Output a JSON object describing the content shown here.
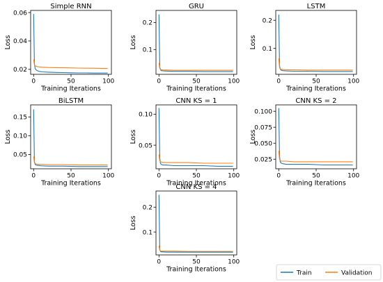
{
  "legend": {
    "train_label": "Train",
    "validation_label": "Validation",
    "train_color": "#1f77b4",
    "validation_color": "#ff7f0e",
    "placement": "bottom-right"
  },
  "chart_data": [
    {
      "type": "line",
      "title": "Simple RNN",
      "xlabel": "Training Iterations",
      "ylabel": "Loss",
      "xlim": [
        -4,
        104
      ],
      "ylim": [
        0.0165,
        0.0615
      ],
      "xticks": [
        0,
        50,
        100
      ],
      "xtick_labels": [
        "0",
        "50",
        "100"
      ],
      "yticks": [
        0.02,
        0.04,
        0.06
      ],
      "ytick_labels": [
        "0.02",
        "0.04",
        "0.06"
      ],
      "grid": false,
      "x": [
        0,
        1,
        2,
        3,
        5,
        8,
        12,
        20,
        30,
        40,
        50,
        60,
        70,
        80,
        90,
        99
      ],
      "series": [
        {
          "name": "Train",
          "values": [
            0.059,
            0.024,
            0.0208,
            0.0198,
            0.019,
            0.0185,
            0.0182,
            0.018,
            0.0178,
            0.0177,
            0.0176,
            0.0175,
            0.0175,
            0.0174,
            0.0174,
            0.0174
          ]
        },
        {
          "name": "Validation",
          "values": [
            0.027,
            0.0232,
            0.0225,
            0.0222,
            0.0219,
            0.0217,
            0.0215,
            0.0213,
            0.0212,
            0.0211,
            0.021,
            0.0209,
            0.0208,
            0.0208,
            0.0207,
            0.0206
          ]
        }
      ]
    },
    {
      "type": "line",
      "title": "GRU",
      "xlabel": "Training Iterations",
      "ylabel": "Loss",
      "xlim": [
        -4,
        104
      ],
      "ylim": [
        0.008,
        0.245
      ],
      "xticks": [
        0,
        50,
        100
      ],
      "xtick_labels": [
        "0",
        "50",
        "100"
      ],
      "yticks": [
        0.1,
        0.2
      ],
      "ytick_labels": [
        "0.1",
        "0.2"
      ],
      "grid": false,
      "x": [
        0,
        1,
        2,
        3,
        5,
        10,
        20,
        40,
        60,
        80,
        99
      ],
      "series": [
        {
          "name": "Train",
          "values": [
            0.23,
            0.035,
            0.025,
            0.022,
            0.021,
            0.02,
            0.019,
            0.019,
            0.018,
            0.018,
            0.018
          ]
        },
        {
          "name": "Validation",
          "values": [
            0.05,
            0.03,
            0.026,
            0.025,
            0.024,
            0.024,
            0.023,
            0.023,
            0.023,
            0.023,
            0.023
          ]
        }
      ]
    },
    {
      "type": "line",
      "title": "LSTM",
      "xlabel": "Training Iterations",
      "ylabel": "Loss",
      "xlim": [
        -4,
        104
      ],
      "ylim": [
        0.008,
        0.235
      ],
      "xticks": [
        0,
        50,
        100
      ],
      "xtick_labels": [
        "0",
        "50",
        "100"
      ],
      "yticks": [
        0.1,
        0.2
      ],
      "ytick_labels": [
        "0.1",
        "0.2"
      ],
      "grid": false,
      "x": [
        0,
        1,
        2,
        3,
        5,
        10,
        20,
        40,
        60,
        80,
        99
      ],
      "series": [
        {
          "name": "Train",
          "values": [
            0.22,
            0.04,
            0.027,
            0.023,
            0.021,
            0.02,
            0.019,
            0.019,
            0.018,
            0.018,
            0.018
          ]
        },
        {
          "name": "Validation",
          "values": [
            0.065,
            0.032,
            0.027,
            0.026,
            0.025,
            0.024,
            0.024,
            0.023,
            0.023,
            0.023,
            0.023
          ]
        }
      ]
    },
    {
      "type": "line",
      "title": "BiLSTM",
      "xlabel": "Training Iterations",
      "ylabel": "Loss",
      "xlim": [
        -4,
        104
      ],
      "ylim": [
        0.012,
        0.182
      ],
      "xticks": [
        0,
        50,
        100
      ],
      "xtick_labels": [
        "0",
        "50",
        "100"
      ],
      "yticks": [
        0.05,
        0.1,
        0.15
      ],
      "ytick_labels": [
        "0.05",
        "0.10",
        "0.15"
      ],
      "grid": false,
      "x": [
        0,
        1,
        2,
        3,
        5,
        10,
        20,
        40,
        60,
        80,
        99
      ],
      "series": [
        {
          "name": "Train",
          "values": [
            0.17,
            0.032,
            0.024,
            0.022,
            0.021,
            0.02,
            0.019,
            0.019,
            0.018,
            0.018,
            0.018
          ]
        },
        {
          "name": "Validation",
          "values": [
            0.045,
            0.028,
            0.026,
            0.025,
            0.024,
            0.024,
            0.023,
            0.023,
            0.022,
            0.022,
            0.022
          ]
        }
      ]
    },
    {
      "type": "line",
      "title": "CNN KS = 1",
      "xlabel": "Training Iterations",
      "ylabel": "Loss",
      "xlim": [
        -4,
        104
      ],
      "ylim": [
        0.012,
        0.115
      ],
      "xticks": [
        0,
        50,
        100
      ],
      "xtick_labels": [
        "0",
        "50",
        "100"
      ],
      "yticks": [
        0.05,
        0.1
      ],
      "ytick_labels": [
        "0.05",
        "0.10"
      ],
      "grid": false,
      "x": [
        0,
        1,
        2,
        3,
        5,
        10,
        20,
        40,
        60,
        80,
        99
      ],
      "series": [
        {
          "name": "Train",
          "values": [
            0.11,
            0.03,
            0.021,
            0.019,
            0.018,
            0.018,
            0.017,
            0.017,
            0.017,
            0.016,
            0.016
          ]
        },
        {
          "name": "Validation",
          "values": [
            0.035,
            0.025,
            0.023,
            0.023,
            0.022,
            0.022,
            0.022,
            0.022,
            0.021,
            0.021,
            0.021
          ]
        }
      ]
    },
    {
      "type": "line",
      "title": "CNN KS = 2",
      "xlabel": "Training Iterations",
      "ylabel": "Loss",
      "xlim": [
        -4,
        104
      ],
      "ylim": [
        0.01,
        0.11
      ],
      "xticks": [
        0,
        50,
        100
      ],
      "xtick_labels": [
        "0",
        "50",
        "100"
      ],
      "yticks": [
        0.025,
        0.05,
        0.075,
        0.1
      ],
      "ytick_labels": [
        "0.025",
        "0.050",
        "0.075",
        "0.100"
      ],
      "grid": false,
      "x": [
        0,
        1,
        2,
        3,
        5,
        10,
        20,
        40,
        60,
        80,
        99
      ],
      "series": [
        {
          "name": "Train",
          "values": [
            0.105,
            0.03,
            0.021,
            0.019,
            0.018,
            0.017,
            0.017,
            0.017,
            0.016,
            0.016,
            0.016
          ]
        },
        {
          "name": "Validation",
          "values": [
            0.038,
            0.025,
            0.023,
            0.022,
            0.022,
            0.022,
            0.021,
            0.021,
            0.021,
            0.021,
            0.021
          ]
        }
      ]
    },
    {
      "type": "line",
      "title": "CNN KS = 4",
      "xlabel": "Training Iterations",
      "ylabel": "Loss",
      "xlim": [
        -4,
        104
      ],
      "ylim": [
        0.008,
        0.265
      ],
      "xticks": [
        0,
        50,
        100
      ],
      "xtick_labels": [
        "0",
        "50",
        "100"
      ],
      "yticks": [
        0.1,
        0.2
      ],
      "ytick_labels": [
        "0.1",
        "0.2"
      ],
      "grid": false,
      "x": [
        0,
        1,
        2,
        3,
        5,
        10,
        20,
        40,
        60,
        80,
        99
      ],
      "series": [
        {
          "name": "Train",
          "values": [
            0.25,
            0.03,
            0.022,
            0.02,
            0.02,
            0.019,
            0.019,
            0.019,
            0.019,
            0.019,
            0.019
          ]
        },
        {
          "name": "Validation",
          "values": [
            0.045,
            0.027,
            0.024,
            0.023,
            0.023,
            0.023,
            0.023,
            0.022,
            0.022,
            0.022,
            0.022
          ]
        }
      ]
    }
  ]
}
